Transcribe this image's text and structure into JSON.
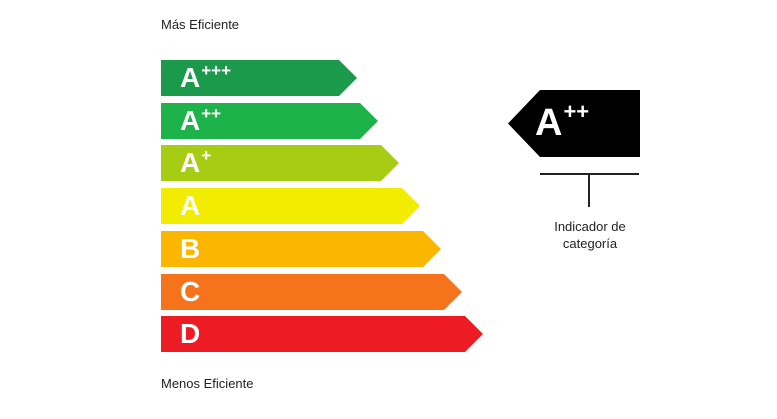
{
  "labels": {
    "top": "Más Eficiente",
    "bottom": "Menos Eficiente"
  },
  "ratings": [
    {
      "letter": "A",
      "sup": "+++",
      "color": "#1a9a4a"
    },
    {
      "letter": "A",
      "sup": "++",
      "color": "#1db34a"
    },
    {
      "letter": "A",
      "sup": "+",
      "color": "#a6cc14"
    },
    {
      "letter": "A",
      "sup": "",
      "color": "#f2ec00"
    },
    {
      "letter": "B",
      "sup": "",
      "color": "#fbb700"
    },
    {
      "letter": "C",
      "sup": "",
      "color": "#f5741b"
    },
    {
      "letter": "D",
      "sup": "",
      "color": "#ed1c24"
    }
  ],
  "indicator": {
    "letter": "A",
    "sup": "++",
    "color": "#000000",
    "caption_line1": "Indicador de",
    "caption_line2": "categoría"
  }
}
